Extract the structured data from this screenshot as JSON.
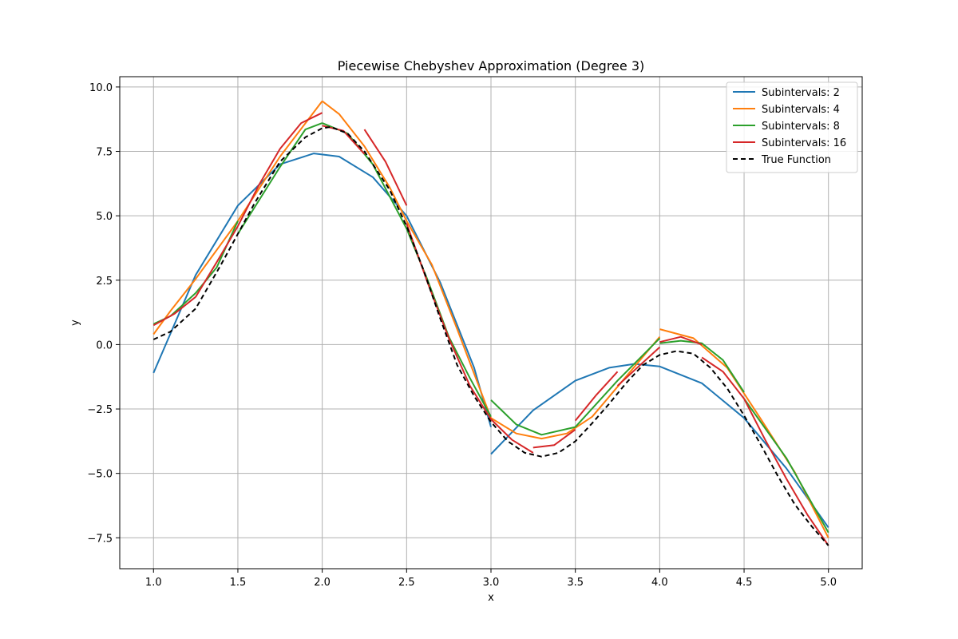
{
  "chart_data": {
    "type": "line",
    "title": "Piecewise Chebyshev Approximation (Degree 3)",
    "xlabel": "x",
    "ylabel": "y",
    "xlim": [
      0.8,
      5.2
    ],
    "ylim": [
      -8.7,
      10.4
    ],
    "x_ticks": [
      1.0,
      1.5,
      2.0,
      2.5,
      3.0,
      3.5,
      4.0,
      4.5,
      5.0
    ],
    "x_tick_labels": [
      "1.0",
      "1.5",
      "2.0",
      "2.5",
      "3.0",
      "3.5",
      "4.0",
      "4.5",
      "5.0"
    ],
    "y_ticks": [
      -7.5,
      -5.0,
      -2.5,
      0.0,
      2.5,
      5.0,
      7.5,
      10.0
    ],
    "y_tick_labels": [
      "−7.5",
      "−5.0",
      "−2.5",
      "0.0",
      "2.5",
      "5.0",
      "7.5",
      "10.0"
    ],
    "grid": true,
    "legend_position": "top-right",
    "series": [
      {
        "name": "Subintervals: 2",
        "color": "#1f77b4",
        "dash": "",
        "segments": [
          [
            [
              1.0,
              -1.1
            ],
            [
              1.25,
              2.7
            ],
            [
              1.5,
              5.4
            ],
            [
              1.75,
              7.0
            ],
            [
              1.95,
              7.42
            ],
            [
              2.1,
              7.3
            ],
            [
              2.3,
              6.5
            ],
            [
              2.5,
              5.0
            ],
            [
              2.7,
              2.4
            ],
            [
              2.9,
              -0.9
            ],
            [
              3.0,
              -3.2
            ]
          ],
          [
            [
              3.0,
              -4.25
            ],
            [
              3.25,
              -2.55
            ],
            [
              3.5,
              -1.4
            ],
            [
              3.7,
              -0.9
            ],
            [
              3.85,
              -0.75
            ],
            [
              4.0,
              -0.85
            ],
            [
              4.25,
              -1.5
            ],
            [
              4.5,
              -2.85
            ],
            [
              4.75,
              -4.8
            ],
            [
              5.0,
              -7.1
            ]
          ]
        ]
      },
      {
        "name": "Subintervals: 4",
        "color": "#ff7f0e",
        "dash": "",
        "segments": [
          [
            [
              1.0,
              0.4
            ],
            [
              1.1,
              1.3
            ],
            [
              1.25,
              2.55
            ],
            [
              1.5,
              4.8
            ],
            [
              1.75,
              7.3
            ],
            [
              2.0,
              9.45
            ]
          ],
          [
            [
              2.0,
              9.45
            ],
            [
              2.1,
              8.95
            ],
            [
              2.25,
              7.7
            ],
            [
              2.4,
              6.1
            ],
            [
              2.5,
              4.8
            ],
            [
              2.65,
              3.1
            ],
            [
              2.8,
              0.6
            ],
            [
              3.0,
              -2.85
            ]
          ],
          [
            [
              3.0,
              -2.85
            ],
            [
              3.15,
              -3.45
            ],
            [
              3.3,
              -3.65
            ],
            [
              3.45,
              -3.45
            ],
            [
              3.6,
              -2.8
            ],
            [
              3.8,
              -1.25
            ],
            [
              4.0,
              0.3
            ]
          ],
          [
            [
              4.0,
              0.6
            ],
            [
              4.2,
              0.25
            ],
            [
              4.4,
              -0.9
            ],
            [
              4.6,
              -2.9
            ],
            [
              4.8,
              -4.95
            ],
            [
              5.0,
              -7.5
            ]
          ]
        ]
      },
      {
        "name": "Subintervals: 8",
        "color": "#2ca02c",
        "dash": "",
        "segments": [
          [
            [
              1.0,
              0.8
            ],
            [
              1.1,
              1.1
            ],
            [
              1.25,
              2.0
            ]
          ],
          [
            [
              1.25,
              2.0
            ],
            [
              1.375,
              3.0
            ],
            [
              1.5,
              4.8
            ]
          ],
          [
            [
              1.5,
              4.3
            ],
            [
              1.75,
              6.9
            ],
            [
              1.9,
              8.35
            ],
            [
              2.0,
              8.6
            ]
          ],
          [
            [
              2.0,
              8.6
            ],
            [
              2.15,
              8.2
            ],
            [
              2.3,
              7.0
            ],
            [
              2.5,
              4.5
            ]
          ],
          [
            [
              2.5,
              4.5
            ],
            [
              2.625,
              2.5
            ],
            [
              2.75,
              0.3
            ]
          ],
          [
            [
              2.75,
              0.3
            ],
            [
              2.875,
              -1.3
            ],
            [
              3.0,
              -2.8
            ]
          ],
          [
            [
              3.0,
              -2.15
            ],
            [
              3.15,
              -3.1
            ],
            [
              3.3,
              -3.5
            ],
            [
              3.5,
              -3.2
            ]
          ],
          [
            [
              3.5,
              -3.2
            ],
            [
              3.75,
              -1.4
            ],
            [
              4.0,
              0.25
            ]
          ],
          [
            [
              4.0,
              0.05
            ],
            [
              4.125,
              0.15
            ],
            [
              4.25,
              0.05
            ],
            [
              4.375,
              -0.6
            ],
            [
              4.5,
              -1.85
            ]
          ],
          [
            [
              4.5,
              -2.1
            ],
            [
              4.75,
              -4.4
            ],
            [
              5.0,
              -7.3
            ]
          ]
        ]
      },
      {
        "name": "Subintervals: 16",
        "color": "#d62728",
        "dash": "",
        "segments": [
          [
            [
              1.0,
              0.75
            ],
            [
              1.125,
              1.2
            ],
            [
              1.25,
              1.85
            ]
          ],
          [
            [
              1.25,
              1.85
            ],
            [
              1.375,
              3.2
            ],
            [
              1.5,
              4.6
            ]
          ],
          [
            [
              1.5,
              4.6
            ],
            [
              1.625,
              6.2
            ],
            [
              1.75,
              7.6
            ]
          ],
          [
            [
              1.75,
              7.6
            ],
            [
              1.875,
              8.6
            ],
            [
              2.0,
              9.0
            ]
          ],
          [
            [
              2.0,
              8.5
            ],
            [
              2.125,
              8.3
            ],
            [
              2.25,
              7.4
            ]
          ],
          [
            [
              2.25,
              8.35
            ],
            [
              2.375,
              7.1
            ],
            [
              2.5,
              5.4
            ]
          ],
          [
            [
              2.5,
              4.7
            ],
            [
              2.625,
              2.4
            ],
            [
              2.75,
              0.25
            ]
          ],
          [
            [
              2.75,
              0.25
            ],
            [
              2.875,
              -1.6
            ],
            [
              3.0,
              -2.9
            ]
          ],
          [
            [
              3.0,
              -2.9
            ],
            [
              3.125,
              -3.7
            ],
            [
              3.25,
              -4.2
            ]
          ],
          [
            [
              3.25,
              -4.0
            ],
            [
              3.375,
              -3.9
            ],
            [
              3.5,
              -3.3
            ]
          ],
          [
            [
              3.5,
              -2.95
            ],
            [
              3.625,
              -1.95
            ],
            [
              3.75,
              -1.05
            ]
          ],
          [
            [
              3.75,
              -1.6
            ],
            [
              3.875,
              -0.85
            ],
            [
              4.0,
              -0.1
            ]
          ],
          [
            [
              4.0,
              0.1
            ],
            [
              4.125,
              0.3
            ],
            [
              4.25,
              0.0
            ]
          ],
          [
            [
              4.25,
              -0.5
            ],
            [
              4.375,
              -1.05
            ],
            [
              4.5,
              -2.1
            ]
          ],
          [
            [
              4.5,
              -2.1
            ],
            [
              4.625,
              -3.7
            ],
            [
              4.75,
              -5.2
            ]
          ],
          [
            [
              4.75,
              -5.2
            ],
            [
              4.875,
              -6.6
            ],
            [
              5.0,
              -7.8
            ]
          ]
        ]
      },
      {
        "name": "True Function",
        "color": "#000000",
        "dash": "6,4",
        "segments": [
          [
            [
              1.0,
              0.2
            ],
            [
              1.1,
              0.5
            ],
            [
              1.25,
              1.4
            ],
            [
              1.4,
              3.1
            ],
            [
              1.5,
              4.3
            ],
            [
              1.6,
              5.5
            ],
            [
              1.75,
              7.1
            ],
            [
              1.9,
              8.05
            ],
            [
              2.0,
              8.4
            ],
            [
              2.05,
              8.45
            ],
            [
              2.15,
              8.2
            ],
            [
              2.25,
              7.5
            ],
            [
              2.4,
              6.0
            ],
            [
              2.5,
              4.6
            ],
            [
              2.6,
              2.9
            ],
            [
              2.7,
              1.0
            ],
            [
              2.8,
              -0.8
            ],
            [
              2.9,
              -2.0
            ],
            [
              3.0,
              -3.0
            ],
            [
              3.1,
              -3.75
            ],
            [
              3.2,
              -4.2
            ],
            [
              3.3,
              -4.35
            ],
            [
              3.4,
              -4.2
            ],
            [
              3.5,
              -3.75
            ],
            [
              3.6,
              -3.05
            ],
            [
              3.7,
              -2.3
            ],
            [
              3.8,
              -1.5
            ],
            [
              3.9,
              -0.8
            ],
            [
              4.0,
              -0.4
            ],
            [
              4.1,
              -0.25
            ],
            [
              4.2,
              -0.35
            ],
            [
              4.3,
              -0.9
            ],
            [
              4.4,
              -1.7
            ],
            [
              4.5,
              -2.75
            ],
            [
              4.6,
              -3.9
            ],
            [
              4.7,
              -5.1
            ],
            [
              4.8,
              -6.2
            ],
            [
              4.9,
              -7.05
            ],
            [
              5.0,
              -7.8
            ]
          ]
        ]
      }
    ]
  }
}
